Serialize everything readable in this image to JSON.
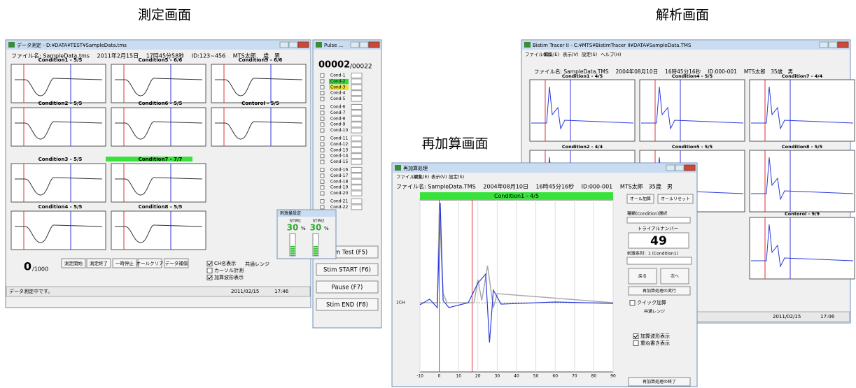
{
  "headings": {
    "measure": "測定画面",
    "analysis": "解析画面",
    "readd": "再加算画面"
  },
  "measure": {
    "title": "データ測定 - D:¥DATA¥TEST¥SampleData.tms",
    "info": "ファイル名: SampleData.tms　 2011年2月15日　 17時45分58秒　 ID:123~456　 MTS太郎　 歳　男",
    "panels": [
      "Condition1 - 5/5",
      "Condition5 - 6/6",
      "Condition9 - 6/6",
      "Condition2 - 5/5",
      "Condition6 - 5/5",
      "Contorol - 5/5",
      "Condition3 - 5/5",
      "Condition7 - 7/7",
      "Condition4 - 5/5",
      "Condition8 - 5/5"
    ],
    "counter": "0",
    "counter_total": "/1000",
    "buttons": [
      "測定開始",
      "測定終了",
      "一時停止",
      "オールクリア",
      "データ補償"
    ],
    "checks": [
      "CH名表示",
      "カーソル計測",
      "加算波形表示"
    ],
    "range": "共通レンジ",
    "status": "データ測定中です。",
    "date": "2011/02/15",
    "time": "17:46"
  },
  "pulse": {
    "title": "Pulse ...",
    "count": "00002",
    "total": "/00022",
    "conds": [
      "Cond-1",
      "Cond-2",
      "Cond-3",
      "Cond-4",
      "Cond-5",
      "Cond-6",
      "Cond-7",
      "Cond-8",
      "Cond-9",
      "Cond-10",
      "Cond-11",
      "Cond-12",
      "Cond-13",
      "Cond-14",
      "Cond-15",
      "Cond-16",
      "Cond-17",
      "Cond-18",
      "Cond-19",
      "Cond-20",
      "Cond-21",
      "Cond-22"
    ],
    "buttons": [
      "Stim Test (F5)",
      "Stim START (F6)",
      "Pause (F7)",
      "Stim END (F8)"
    ]
  },
  "popup": {
    "title": "刺激量設定",
    "labels": [
      "STIM1",
      "STIM2"
    ],
    "values": [
      30,
      30
    ],
    "unit": "%"
  },
  "analysis": {
    "title": "Bistim Tracer II - C:¥MTS¥BistimTracer II¥DATA¥SampleData.TMS",
    "menu": [
      "ファイル(F)",
      "編集(E)",
      "表示(V)",
      "設定(S)",
      "ヘルプ(H)"
    ],
    "info": "ファイル名: SampleData.TMS　 2004年08月10日　 16時45分16秒　 ID:000-001　 MTS太郎　35歳　男",
    "panels": [
      "Condition1 - 4/5",
      "Condition4 - 5/5",
      "Condition7 - 4/4",
      "Condition2 - 4/4",
      "Condition5 - 5/5",
      "Condition8 - 5/5",
      "Contorol - 9/9"
    ],
    "date": "2011/02/15",
    "time": "17:06"
  },
  "readd": {
    "title": "再加算処理",
    "menu": [
      "ファイル(F)",
      "編集(E)",
      "表示(V)",
      "設定(S)"
    ],
    "info": "ファイル名: SampleData.TMS　 2004年08月10日　 16時45分16秒　 ID:000-001　 MTS太郎　35歳　男",
    "header": "Condition1 - 4/5",
    "channel": "1CH",
    "xlim": [
      -10,
      90
    ],
    "xticks": [
      -10,
      0,
      10,
      20,
      30,
      40,
      50,
      60,
      70,
      80,
      90
    ],
    "buttons": [
      "オール加算",
      "オールリセット"
    ],
    "select": "種類(Condition)選択",
    "trial_label": "トライアルナンバー",
    "trial": "49",
    "sequence": "刺激系列：1 (Condition1)",
    "nav": [
      "戻る",
      "次へ"
    ],
    "run": "再加算処理の実行",
    "quick": "クイック加算",
    "range": "共通レンジ",
    "checks": [
      "加算波形表示",
      "重ね書き表示"
    ],
    "end": "再加算処理の終了"
  }
}
